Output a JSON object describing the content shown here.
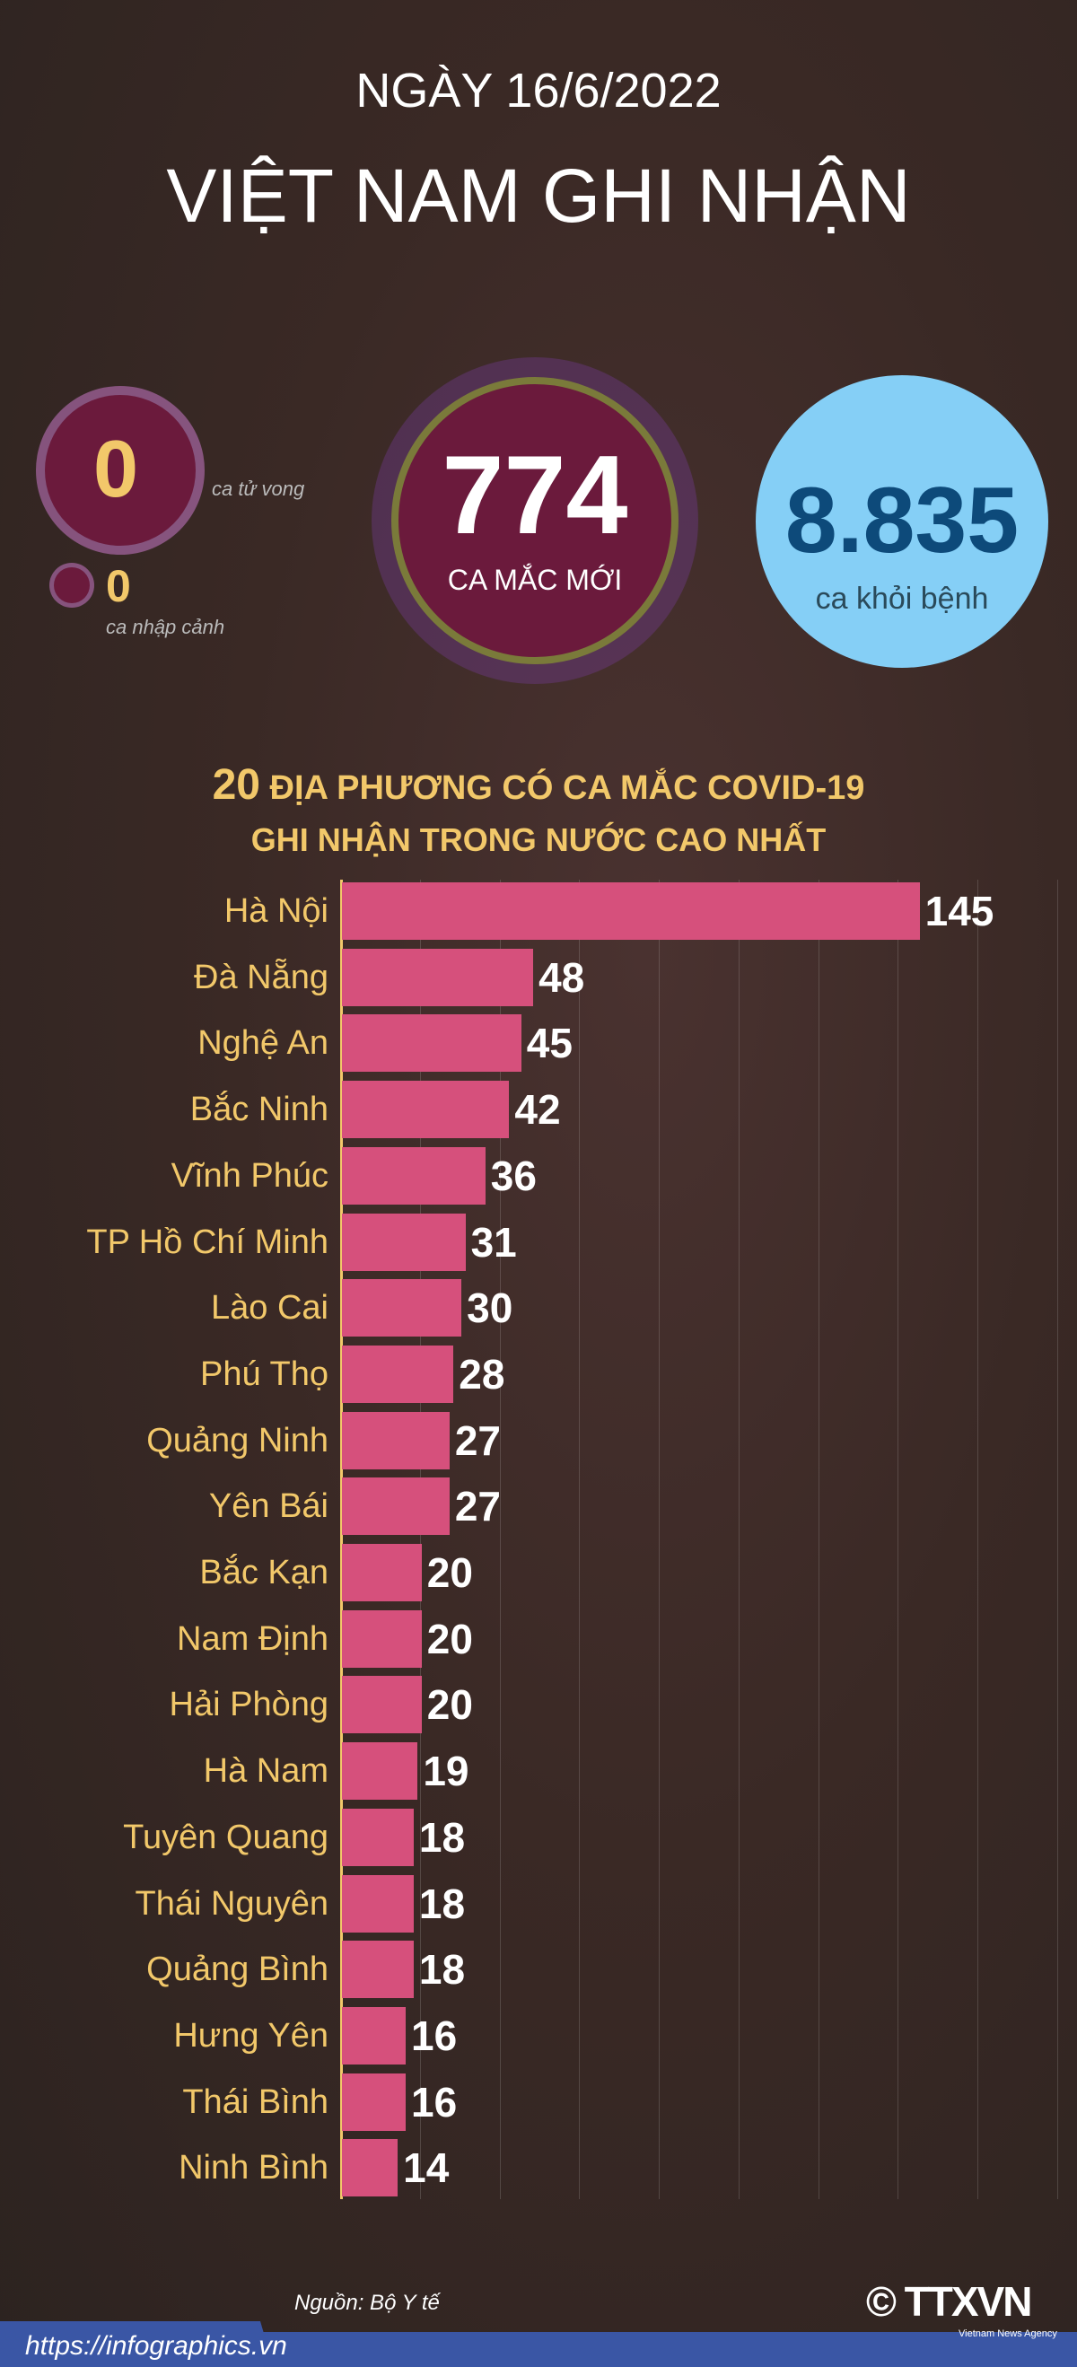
{
  "header": {
    "date": "NGÀY 16/6/2022",
    "title": "VIỆT NAM GHI NHẬN"
  },
  "stats": {
    "new_cases": {
      "value": "774",
      "label": "CA MẮC MỚI"
    },
    "recovered": {
      "value": "8.835",
      "label": "ca khỏi bệnh"
    },
    "deaths": {
      "value": "0",
      "label": "ca tử vong"
    },
    "imported": {
      "value": "0",
      "label": "ca nhập cảnh"
    }
  },
  "colors": {
    "bar": "#d6507c",
    "label": "#f2c86a",
    "recovered_circle": "#85cff6",
    "recovered_text": "#0d4a7a",
    "virus": "#6b1a3c"
  },
  "chart_data": {
    "type": "bar",
    "orientation": "horizontal",
    "title_number": "20",
    "title_line1": "ĐỊA PHƯƠNG CÓ CA MẮC COVID-19",
    "title_line2": "GHI NHẬN TRONG NƯỚC CAO NHẤT",
    "categories": [
      "Hà Nội",
      "Đà Nẵng",
      "Nghệ An",
      "Bắc Ninh",
      "Vĩnh Phúc",
      "TP Hồ Chí Minh",
      "Lào Cai",
      "Phú Thọ",
      "Quảng Ninh",
      "Yên Bái",
      "Bắc Kạn",
      "Nam Định",
      "Hải Phòng",
      "Hà Nam",
      "Tuyên Quang",
      "Thái Nguyên",
      "Quảng Bình",
      "Hưng Yên",
      "Thái Bình",
      "Ninh Bình"
    ],
    "values": [
      145,
      48,
      45,
      42,
      36,
      31,
      30,
      28,
      27,
      27,
      20,
      20,
      20,
      19,
      18,
      18,
      18,
      16,
      16,
      14
    ],
    "xlim": [
      0,
      180
    ],
    "grid": true
  },
  "footer": {
    "source": "Nguồn: Bộ Y tế",
    "url": "https://infographics.vn",
    "logo": "© TTXVN",
    "logo_sub": "Vietnam News Agency"
  }
}
